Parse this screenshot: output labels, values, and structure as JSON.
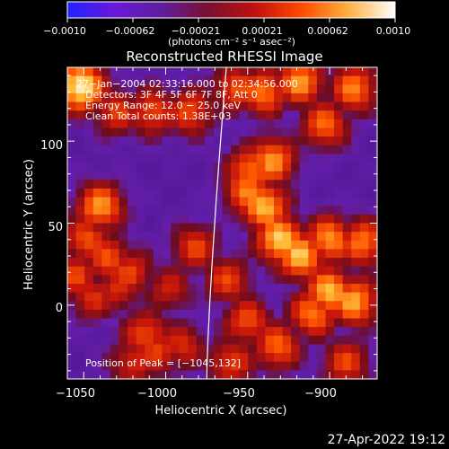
{
  "chart_data": {
    "type": "heatmap",
    "title": "Reconstructed RHESSI Image",
    "xlabel": "Heliocentric X (arcsec)",
    "ylabel": "Heliocentric Y (arcsec)",
    "xlim": [
      -1060,
      -871
    ],
    "ylim": [
      -45,
      145
    ],
    "x_ticks": [
      {
        "value": -1050,
        "label": "−1050"
      },
      {
        "value": -1000,
        "label": "−1000"
      },
      {
        "value": -950,
        "label": "−950"
      },
      {
        "value": -900,
        "label": "−900"
      }
    ],
    "y_ticks": [
      {
        "value": 0,
        "label": "0"
      },
      {
        "value": 50,
        "label": "50"
      },
      {
        "value": 100,
        "label": "100"
      }
    ],
    "colorbar": {
      "range": [
        -0.001,
        0.001
      ],
      "ticks": [
        "−0.0010",
        "−0.00062",
        "−0.00021",
        "0.00021",
        "0.00062",
        "0.0010"
      ],
      "unit_label": "(photons cm⁻² s⁻¹ asec⁻²)",
      "colors": [
        "#1f23ff",
        "#6a18d8",
        "#5e1ea0",
        "#7a1030",
        "#c01010",
        "#ff4a00",
        "#ffb040",
        "#ffffff"
      ]
    },
    "annotations": [
      "27−Jan−2004 02:33:16.000 to 02:34:56.000",
      "Detectors: 3F 4F 5F 6F 7F 8F, Att 0",
      "Energy Range: 12.0 − 25.0 keV",
      "Clean    Total counts: 1.38E+03"
    ],
    "peak_label": "Position of Peak = [−1045,132]",
    "peak": {
      "x": -1045,
      "y": 132
    },
    "limb_color": "#ffffff",
    "sources": [
      {
        "x": -1052,
        "y": 133,
        "i": 1.0
      },
      {
        "x": -1030,
        "y": 118,
        "i": 0.55
      },
      {
        "x": -1008,
        "y": 118,
        "i": 0.6
      },
      {
        "x": -985,
        "y": 118,
        "i": 0.6
      },
      {
        "x": -957,
        "y": 132,
        "i": 0.6
      },
      {
        "x": -940,
        "y": 130,
        "i": 0.7
      },
      {
        "x": -918,
        "y": 136,
        "i": 0.75
      },
      {
        "x": -885,
        "y": 132,
        "i": 0.7
      },
      {
        "x": -903,
        "y": 110,
        "i": 0.65
      },
      {
        "x": -935,
        "y": 88,
        "i": 0.75
      },
      {
        "x": -948,
        "y": 82,
        "i": 0.7
      },
      {
        "x": -950,
        "y": 70,
        "i": 0.7
      },
      {
        "x": -940,
        "y": 60,
        "i": 0.85
      },
      {
        "x": -930,
        "y": 40,
        "i": 0.9
      },
      {
        "x": -918,
        "y": 30,
        "i": 0.85
      },
      {
        "x": -900,
        "y": 40,
        "i": 0.75
      },
      {
        "x": -880,
        "y": 38,
        "i": 0.7
      },
      {
        "x": -900,
        "y": 8,
        "i": 0.85
      },
      {
        "x": -885,
        "y": 2,
        "i": 0.8
      },
      {
        "x": -910,
        "y": -5,
        "i": 0.7
      },
      {
        "x": -932,
        "y": -25,
        "i": 0.65
      },
      {
        "x": -950,
        "y": -10,
        "i": 0.6
      },
      {
        "x": -962,
        "y": 15,
        "i": 0.55
      },
      {
        "x": -960,
        "y": -35,
        "i": 0.55
      },
      {
        "x": -890,
        "y": -35,
        "i": 0.55
      },
      {
        "x": -982,
        "y": 35,
        "i": 0.55
      },
      {
        "x": -1040,
        "y": 60,
        "i": 0.75
      },
      {
        "x": -1048,
        "y": 40,
        "i": 0.6
      },
      {
        "x": -1035,
        "y": 28,
        "i": 0.6
      },
      {
        "x": -1022,
        "y": 20,
        "i": 0.55
      },
      {
        "x": -1030,
        "y": 10,
        "i": 0.5
      },
      {
        "x": -1045,
        "y": 5,
        "i": 0.5
      },
      {
        "x": -1012,
        "y": -18,
        "i": 0.6
      },
      {
        "x": -1005,
        "y": -28,
        "i": 0.55
      },
      {
        "x": -990,
        "y": -25,
        "i": 0.5
      },
      {
        "x": -1020,
        "y": -35,
        "i": 0.5
      },
      {
        "x": -998,
        "y": 10,
        "i": 0.45
      },
      {
        "x": -1055,
        "y": 18,
        "i": 0.55
      }
    ]
  },
  "footer": {
    "timestamp": "27-Apr-2022 19:12"
  }
}
